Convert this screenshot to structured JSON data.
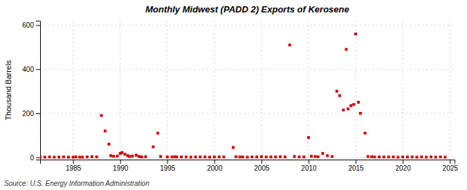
{
  "chart_data": {
    "type": "scatter",
    "title": "Monthly Midwest (PADD 2) Exports of Kerosene",
    "ylabel": "Thousand Barrels",
    "source": "Source: U.S. Energy Information Administration",
    "x": [
      1981.5,
      1982.0,
      1982.5,
      1983.0,
      1983.5,
      1984.0,
      1984.5,
      1985.0,
      1985.3,
      1985.7,
      1986.0,
      1986.5,
      1987.0,
      1987.5,
      1988.0,
      1988.4,
      1988.8,
      1989.0,
      1989.3,
      1989.7,
      1990.0,
      1990.2,
      1990.5,
      1990.8,
      1991.0,
      1991.3,
      1991.7,
      1992.0,
      1992.3,
      1992.7,
      1993.5,
      1994.0,
      1994.3,
      1995.0,
      1995.5,
      1995.8,
      1996.0,
      1996.5,
      1997.0,
      1997.5,
      1998.0,
      1998.5,
      1999.0,
      1999.5,
      2000.0,
      2000.5,
      2001.0,
      2002.0,
      2002.3,
      2002.7,
      2003.0,
      2003.5,
      2004.0,
      2004.5,
      2005.0,
      2005.5,
      2006.0,
      2006.5,
      2007.0,
      2007.5,
      2008.0,
      2008.5,
      2009.0,
      2009.5,
      2010.0,
      2010.3,
      2010.7,
      2011.0,
      2011.5,
      2012.0,
      2012.5,
      2013.0,
      2013.3,
      2013.7,
      2014.0,
      2014.2,
      2014.5,
      2014.8,
      2015.0,
      2015.3,
      2015.5,
      2016.0,
      2016.3,
      2016.7,
      2017.0,
      2017.5,
      2018.0,
      2018.5,
      2019.0,
      2019.5,
      2020.0,
      2020.5,
      2021.0,
      2021.5,
      2022.0,
      2022.5,
      2023.0,
      2023.5,
      2024.0,
      2024.5
    ],
    "values": [
      2,
      1,
      2,
      1,
      1,
      2,
      1,
      1,
      2,
      1,
      1,
      2,
      3,
      2,
      190,
      120,
      60,
      8,
      5,
      6,
      18,
      22,
      14,
      8,
      4,
      6,
      10,
      4,
      2,
      3,
      48,
      110,
      4,
      2,
      2,
      3,
      2,
      2,
      2,
      1,
      2,
      2,
      2,
      1,
      2,
      2,
      2,
      45,
      3,
      2,
      2,
      1,
      2,
      2,
      3,
      2,
      2,
      2,
      3,
      2,
      510,
      4,
      2,
      2,
      90,
      5,
      4,
      3,
      18,
      8,
      4,
      300,
      280,
      215,
      490,
      220,
      235,
      240,
      560,
      250,
      200,
      110,
      4,
      3,
      2,
      2,
      2,
      2,
      2,
      1,
      2,
      2,
      2,
      1,
      2,
      1,
      2,
      1,
      2,
      1
    ],
    "color": "#cc0000",
    "marker": "square",
    "xlim": [
      1981.5,
      2025.5
    ],
    "ylim": [
      -10,
      620
    ],
    "xticks": [
      1985,
      1990,
      1995,
      2000,
      2005,
      2010,
      2015,
      2020,
      2025
    ],
    "yticks": [
      0,
      200,
      400,
      600
    ],
    "grid": true
  }
}
